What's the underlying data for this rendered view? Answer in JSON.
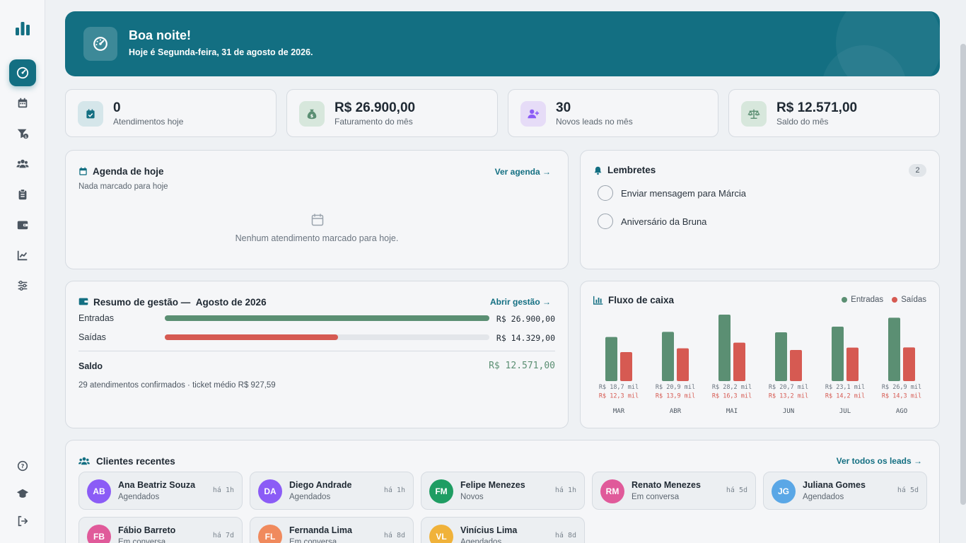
{
  "greeting": {
    "title": "Boa noite!",
    "subtitle": "Hoje é Segunda-feira, 31 de agosto de 2026."
  },
  "stats": [
    {
      "value": "0",
      "label": "Atendimentos hoje",
      "icon": "calendar-check-icon"
    },
    {
      "value": "R$ 26.900,00",
      "label": "Faturamento do mês",
      "icon": "money-bag-icon"
    },
    {
      "value": "30",
      "label": "Novos leads no mês",
      "icon": "user-plus-icon"
    },
    {
      "value": "R$ 12.571,00",
      "label": "Saldo do mês",
      "icon": "scale-icon"
    }
  ],
  "agenda": {
    "title": "Agenda de hoje",
    "subtitle": "Nada marcado para hoje",
    "link": "Ver agenda →",
    "empty": "Nenhum atendimento marcado para hoje."
  },
  "reminders": {
    "title": "Lembretes",
    "count": "2",
    "items": [
      "Enviar mensagem para Márcia",
      "Aniversário da Bruna"
    ]
  },
  "summary": {
    "title": "Resumo de gestão —",
    "period": "Agosto de 2026",
    "link": "Abrir gestão →",
    "rows": [
      {
        "label": "Entradas",
        "value": "R$ 26.900,00",
        "ratio": 1.0,
        "color": "#5b8f73"
      },
      {
        "label": "Saídas",
        "value": "R$ 14.329,00",
        "ratio": 0.533,
        "color": "#d65a52"
      }
    ],
    "balance_label": "Saldo",
    "balance_value": "R$ 12.571,00",
    "footnote": "29 atendimentos confirmados · ticket médio R$ 927,59"
  },
  "cashflow": {
    "title": "Fluxo de caixa",
    "legend_in": "Entradas",
    "legend_out": "Saídas"
  },
  "chart_data": {
    "type": "bar",
    "title": "Fluxo de caixa",
    "categories": [
      "MAR",
      "ABR",
      "MAI",
      "JUN",
      "JUL",
      "AGO"
    ],
    "series": [
      {
        "name": "Entradas",
        "color": "#5b8f73",
        "values": [
          18.7,
          20.9,
          28.2,
          20.7,
          23.1,
          26.9
        ],
        "labels": [
          "R$ 18,7 mil",
          "R$ 20,9 mil",
          "R$ 28,2 mil",
          "R$ 20,7 mil",
          "R$ 23,1 mil",
          "R$ 26,9 mil"
        ]
      },
      {
        "name": "Saídas",
        "color": "#d65a52",
        "values": [
          12.3,
          13.9,
          16.3,
          13.2,
          14.2,
          14.3
        ],
        "labels": [
          "R$ 12,3 mil",
          "R$ 13,9 mil",
          "R$ 16,3 mil",
          "R$ 13,2 mil",
          "R$ 14,2 mil",
          "R$ 14,3 mil"
        ]
      }
    ],
    "ylim": [
      0,
      28.2
    ],
    "legend": "top-right",
    "grid": false
  },
  "clients": {
    "title": "Clientes recentes",
    "link": "Ver todos os leads →",
    "items": [
      {
        "initials": "AB",
        "name": "Ana Beatriz Souza",
        "status": "Agendados",
        "time": "há 1h",
        "color": "#8b5cf6"
      },
      {
        "initials": "DA",
        "name": "Diego Andrade",
        "status": "Agendados",
        "time": "há 1h",
        "color": "#8b5cf6"
      },
      {
        "initials": "FM",
        "name": "Felipe Menezes",
        "status": "Novos",
        "time": "há 1h",
        "color": "#1f9d63"
      },
      {
        "initials": "RM",
        "name": "Renato Menezes",
        "status": "Em conversa",
        "time": "há 5d",
        "color": "#e05a9a"
      },
      {
        "initials": "JG",
        "name": "Juliana Gomes",
        "status": "Agendados",
        "time": "há 5d",
        "color": "#5aa7e6"
      },
      {
        "initials": "FB",
        "name": "Fábio Barreto",
        "status": "Em conversa",
        "time": "há 7d",
        "color": "#e05a9a"
      },
      {
        "initials": "FL",
        "name": "Fernanda Lima",
        "status": "Em conversa",
        "time": "há 8d",
        "color": "#f08a5d"
      },
      {
        "initials": "VL",
        "name": "Vinícius Lima",
        "status": "Agendados",
        "time": "há 8d",
        "color": "#f0b23a"
      }
    ]
  }
}
